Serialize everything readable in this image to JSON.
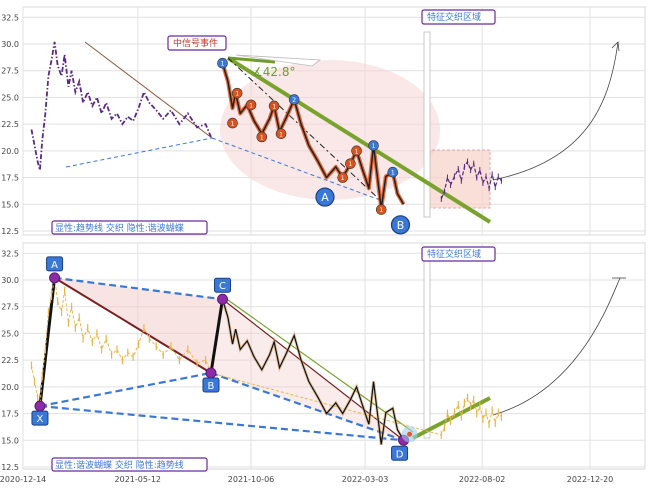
{
  "chart_data": [
    {
      "type": "line",
      "panel": "top",
      "ylim": [
        12.5,
        32.5
      ],
      "y_ticks": [
        "32.5",
        "30.0",
        "27.5",
        "25.0",
        "22.5",
        "20.0",
        "17.5",
        "15.0",
        "12.5"
      ],
      "series": [
        {
          "color": "#5b2a86",
          "style": "dash-dot",
          "points": [
            [
              "2020-12-25",
              22.0
            ],
            [
              "2020-12-29",
              20.5
            ],
            [
              "2021-01-02",
              19.0
            ],
            [
              "2021-01-05",
              18.2
            ],
            [
              "2021-01-08",
              21.0
            ],
            [
              "2021-01-12",
              23.5
            ],
            [
              "2021-01-16",
              27.0
            ],
            [
              "2021-01-20",
              28.5
            ],
            [
              "2021-01-24",
              30.2
            ],
            [
              "2021-01-28",
              28.0
            ],
            [
              "2021-02-02",
              27.0
            ],
            [
              "2021-02-06",
              29.0
            ],
            [
              "2021-02-11",
              26.0
            ],
            [
              "2021-02-15",
              27.5
            ],
            [
              "2021-02-20",
              25.5
            ],
            [
              "2021-02-25",
              26.5
            ],
            [
              "2021-03-02",
              24.5
            ],
            [
              "2021-03-08",
              25.5
            ],
            [
              "2021-03-14",
              24.2
            ],
            [
              "2021-03-20",
              25.0
            ],
            [
              "2021-03-26",
              23.5
            ],
            [
              "2021-04-01",
              24.5
            ],
            [
              "2021-04-08",
              23.0
            ],
            [
              "2021-04-15",
              23.5
            ],
            [
              "2021-04-22",
              22.5
            ],
            [
              "2021-04-29",
              23.2
            ],
            [
              "2021-05-06",
              22.8
            ],
            [
              "2021-05-13",
              24.0
            ],
            [
              "2021-05-20",
              25.5
            ],
            [
              "2021-05-27",
              24.5
            ],
            [
              "2021-06-05",
              23.8
            ],
            [
              "2021-06-14",
              23.0
            ],
            [
              "2021-06-24",
              23.8
            ],
            [
              "2021-07-05",
              22.5
            ],
            [
              "2021-07-16",
              23.5
            ],
            [
              "2021-07-28",
              22.2
            ],
            [
              "2021-08-08",
              22.5
            ],
            [
              "2021-08-15",
              21.3
            ]
          ]
        }
      ],
      "candles_after_event": [
        [
          "2022-06-10",
          15.5
        ],
        [
          "2022-06-14",
          16.2
        ],
        [
          "2022-06-18",
          17.5
        ],
        [
          "2022-06-22",
          16.8
        ],
        [
          "2022-06-27",
          17.6
        ],
        [
          "2022-07-02",
          18.3
        ],
        [
          "2022-07-06",
          17.2
        ],
        [
          "2022-07-10",
          18.5
        ],
        [
          "2022-07-14",
          19.0
        ],
        [
          "2022-07-18",
          18.2
        ],
        [
          "2022-07-22",
          18.8
        ],
        [
          "2022-07-26",
          17.5
        ],
        [
          "2022-07-30",
          18.2
        ],
        [
          "2022-08-03",
          17.0
        ],
        [
          "2022-08-07",
          17.6
        ],
        [
          "2022-08-11",
          16.5
        ],
        [
          "2022-08-15",
          17.8
        ],
        [
          "2022-08-19",
          16.6
        ],
        [
          "2022-08-23",
          17.6
        ],
        [
          "2022-08-27",
          17.2
        ]
      ],
      "wave_points": [
        {
          "label": "1",
          "date": "2021-08-30",
          "y": 28.2,
          "color": "#3a78d8"
        },
        {
          "label": "1",
          "date": "2021-09-18",
          "y": 25.4,
          "color": "#d9531e"
        },
        {
          "label": "1",
          "date": "2021-09-12",
          "y": 22.6,
          "color": "#d9531e"
        },
        {
          "label": "1",
          "date": "2021-10-06",
          "y": 24.3,
          "color": "#d9531e"
        },
        {
          "label": "1",
          "date": "2021-10-20",
          "y": 21.3,
          "color": "#d9531e"
        },
        {
          "label": "1",
          "date": "2021-11-05",
          "y": 24.2,
          "color": "#d9531e"
        },
        {
          "label": "1",
          "date": "2021-11-14",
          "y": 21.6,
          "color": "#d9531e"
        },
        {
          "label": "2",
          "date": "2021-12-01",
          "y": 24.8,
          "color": "#3a78d8"
        },
        {
          "label": "1",
          "date": "2022-02-12",
          "y": 18.8,
          "color": "#d9531e"
        },
        {
          "label": "1",
          "date": "2022-02-20",
          "y": 20.0,
          "color": "#d9531e"
        },
        {
          "label": "1",
          "date": "2022-02-02",
          "y": 17.5,
          "color": "#d9531e"
        },
        {
          "label": "1",
          "date": "2022-03-14",
          "y": 20.5,
          "color": "#3a78d8"
        },
        {
          "label": "1",
          "date": "2022-04-08",
          "y": 18.0,
          "color": "#3a78d8"
        },
        {
          "label": "1",
          "date": "2022-03-24",
          "y": 14.5,
          "color": "#d9531e"
        }
      ],
      "pattern_points": [
        {
          "label": "A",
          "date": "2022-01-10",
          "y": 16.8
        },
        {
          "label": "B",
          "date": "2022-04-18",
          "y": 14.2
        }
      ],
      "angle_label": "∡42.8°",
      "event_label": "中信号事件",
      "region_label": "特征交织区域",
      "legend_text": "显性:趋势线 交织 隐性:谐波蝴蝶"
    },
    {
      "type": "line",
      "panel": "bottom",
      "ylim": [
        12.5,
        32.5
      ],
      "y_ticks": [
        "32.5",
        "30.0",
        "27.5",
        "25.0",
        "22.5",
        "20.0",
        "17.5",
        "15.0",
        "12.5"
      ],
      "x_ticks": [
        "2020-12-14",
        "2021-05-12",
        "2021-10-06",
        "2022-03-03",
        "2022-08-02",
        "2022-12-20"
      ],
      "series": [
        {
          "color": "#111111",
          "points": [
            [
              "2021-08-30",
              28.2
            ],
            [
              "2021-09-06",
              26.5
            ],
            [
              "2021-09-12",
              24.0
            ],
            [
              "2021-09-16",
              25.4
            ],
            [
              "2021-09-22",
              23.5
            ],
            [
              "2021-10-01",
              24.3
            ],
            [
              "2021-10-10",
              22.8
            ],
            [
              "2021-10-20",
              21.6
            ],
            [
              "2021-10-30",
              23.0
            ],
            [
              "2021-11-05",
              24.2
            ],
            [
              "2021-11-12",
              21.8
            ],
            [
              "2021-11-20",
              23.0
            ],
            [
              "2021-12-01",
              24.8
            ],
            [
              "2021-12-10",
              22.5
            ],
            [
              "2021-12-20",
              20.5
            ],
            [
              "2022-01-01",
              19.0
            ],
            [
              "2022-01-12",
              17.5
            ],
            [
              "2022-01-24",
              18.5
            ],
            [
              "2022-02-02",
              17.5
            ],
            [
              "2022-02-12",
              18.8
            ],
            [
              "2022-02-20",
              20.0
            ],
            [
              "2022-02-28",
              18.2
            ],
            [
              "2022-03-08",
              16.5
            ],
            [
              "2022-03-14",
              20.5
            ],
            [
              "2022-03-20",
              17.0
            ],
            [
              "2022-03-24",
              14.6
            ],
            [
              "2022-03-30",
              17.6
            ],
            [
              "2022-04-08",
              18.0
            ],
            [
              "2022-04-14",
              16.0
            ],
            [
              "2022-04-22",
              15.0
            ]
          ]
        }
      ],
      "pattern_points": [
        {
          "label": "X",
          "date": "2021-01-05",
          "y": 18.2
        },
        {
          "label": "A",
          "date": "2021-01-24",
          "y": 30.2
        },
        {
          "label": "B",
          "date": "2021-08-15",
          "y": 21.3
        },
        {
          "label": "C",
          "date": "2021-08-30",
          "y": 28.2
        },
        {
          "label": "D",
          "date": "2022-04-22",
          "y": 15.0
        }
      ],
      "region_label": "特征交织区域",
      "legend_text": "显性:谐波蝴蝶 交织 隐性:趋势线"
    }
  ],
  "colors": {
    "grid": "#e1e1e1",
    "accent_purple": "#5b2a86",
    "trend_green": "#7aa32e",
    "harmonic_blue": "#3a78d8",
    "wave_orange": "#d9531e",
    "label_border": "#6a2aa0",
    "region_fill": "#f7d2c7",
    "ellipse_fill": "#f6d4d4",
    "candle_gold": "#e7b74a"
  }
}
